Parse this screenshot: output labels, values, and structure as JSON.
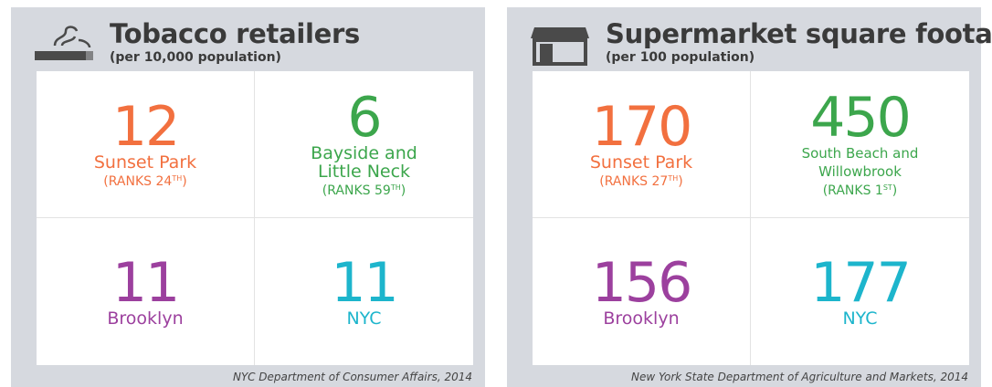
{
  "panels": [
    {
      "title": "Tobacco retailers",
      "subtitle": "(per 10,000 population)",
      "cells": [
        {
          "value": "12",
          "label": [
            "Sunset Park"
          ],
          "rank_text": "(RANKS 24",
          "rank_sup": "TH",
          "rank_close": ")",
          "color": "#f2703f"
        },
        {
          "value": "6",
          "label": [
            "Bayside and",
            "Little Neck"
          ],
          "rank_text": "(RANKS 59",
          "rank_sup": "TH",
          "rank_close": ")",
          "color": "#3ca64c"
        },
        {
          "value": "11",
          "label": [
            "Brooklyn"
          ],
          "color": "#9c409e"
        },
        {
          "value": "11",
          "label": [
            "NYC"
          ],
          "color": "#1db5cc"
        }
      ],
      "source": "NYC Department of Consumer Affairs, 2014"
    },
    {
      "title": "Supermarket square footage",
      "subtitle": "(per 100 population)",
      "cells": [
        {
          "value": "170",
          "label": [
            "Sunset Park"
          ],
          "rank_text": "(RANKS 27",
          "rank_sup": "TH",
          "rank_close": ")",
          "color": "#f2703f"
        },
        {
          "value": "450",
          "label": [
            "South Beach and",
            "Willowbrook"
          ],
          "label_small": true,
          "rank_text": "(RANKS 1",
          "rank_sup": "ST",
          "rank_close": ")",
          "color": "#3ca64c"
        },
        {
          "value": "156",
          "label": [
            "Brooklyn"
          ],
          "color": "#9c409e"
        },
        {
          "value": "177",
          "label": [
            "NYC"
          ],
          "color": "#1db5cc"
        }
      ],
      "source": "New York State Department of Agriculture and Markets, 2014"
    }
  ]
}
